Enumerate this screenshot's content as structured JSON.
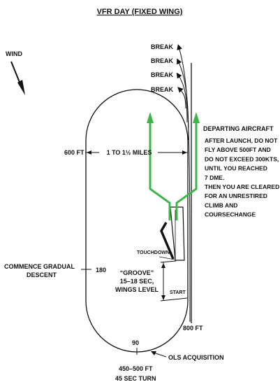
{
  "title": "VFR DAY (FIXED WING)",
  "wind": "WIND",
  "breaks": [
    "BREAK",
    "BREAK",
    "BREAK",
    "BREAK"
  ],
  "departing": {
    "title": "DEPARTING AIRCRAFT",
    "lines": [
      "AFTER LAUNCH, DO NOT",
      "FLY ABOVE 500FT AND",
      "DO NOT EXCEED 300KTS,",
      "UNTIL YOU REACHED",
      "7 DME.",
      "THEN YOU ARE CLEARED",
      "FOR AN UNRESTIRED",
      "CLIMB AND",
      "COURSECHANGE"
    ]
  },
  "labels": {
    "alt_600": "600 FT",
    "distance": "1 TO 1½ MILES",
    "touchdown": "TOUCHDOWN",
    "groove": [
      "“GROOVE”",
      "15–18 SEC,",
      "WINGS LEVEL"
    ],
    "start": "START",
    "commence": [
      "COMMENCE GRADUAL",
      "DESCENT"
    ],
    "deg_180": "180",
    "alt_800": "800 FT",
    "deg_90": "90",
    "ols": "OLS ACQUISITION",
    "alt_450": "450–500 FT",
    "turn": "45 SEC TURN"
  },
  "colors": {
    "ink": "#111111",
    "departure": "#3db54a"
  }
}
